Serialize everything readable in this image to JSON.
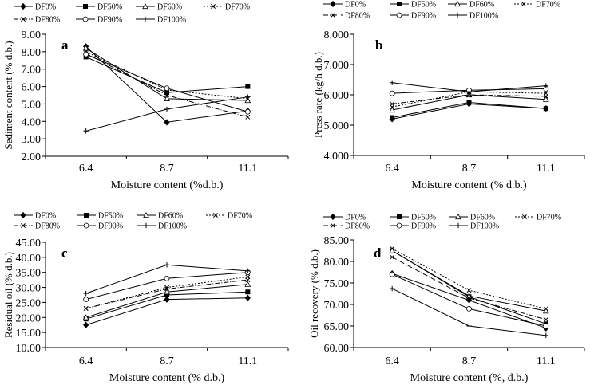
{
  "chart_data": [
    {
      "type": "line",
      "panel_letter": "a",
      "ylabel": "Sediment content (% d.b.)",
      "xlabel": "Moisture content (%d.b.)",
      "categories": [
        "6.4",
        "8.7",
        "11.1"
      ],
      "ylim": [
        2.0,
        9.0
      ],
      "yticks": [
        "2.00",
        "3.00",
        "4.00",
        "5.00",
        "6.00",
        "7.00",
        "8.00",
        "9.00"
      ],
      "legend_position": "top",
      "series": [
        {
          "name": "DF0%",
          "values": [
            8.3,
            3.95,
            4.6
          ]
        },
        {
          "name": "DF50%",
          "values": [
            7.7,
            5.65,
            6.0
          ]
        },
        {
          "name": "DF60%",
          "values": [
            8.2,
            5.3,
            5.2
          ]
        },
        {
          "name": "DF70%",
          "values": [
            8.0,
            5.8,
            5.3
          ]
        },
        {
          "name": "DF80%",
          "values": [
            7.9,
            5.5,
            4.25
          ]
        },
        {
          "name": "DF90%",
          "values": [
            7.85,
            5.9,
            4.55
          ]
        },
        {
          "name": "DF100%",
          "values": [
            3.45,
            4.7,
            5.4
          ]
        }
      ]
    },
    {
      "type": "line",
      "panel_letter": "b",
      "ylabel": "Press rate (kg/h d.b.)",
      "xlabel": "Moisture content (% d.b.)",
      "categories": [
        "6.4",
        "8.7",
        "11.1"
      ],
      "ylim": [
        4.0,
        8.0
      ],
      "yticks": [
        "4.000",
        "5.000",
        "6.000",
        "7.000",
        "8.000"
      ],
      "legend_position": "top",
      "series": [
        {
          "name": "DF0%",
          "values": [
            5.2,
            5.7,
            5.55
          ]
        },
        {
          "name": "DF50%",
          "values": [
            5.25,
            5.75,
            5.55
          ]
        },
        {
          "name": "DF60%",
          "values": [
            5.5,
            6.0,
            5.85
          ]
        },
        {
          "name": "DF70%",
          "values": [
            5.6,
            6.1,
            6.05
          ]
        },
        {
          "name": "DF80%",
          "values": [
            5.7,
            6.0,
            5.95
          ]
        },
        {
          "name": "DF90%",
          "values": [
            6.05,
            6.15,
            6.2
          ]
        },
        {
          "name": "DF100%",
          "values": [
            6.4,
            6.1,
            6.3
          ]
        }
      ]
    },
    {
      "type": "line",
      "panel_letter": "c",
      "ylabel": "Residual oil (% d.b.)",
      "xlabel": "Moisture content (% d.b.)",
      "categories": [
        "6.4",
        "8.7",
        "11.1"
      ],
      "ylim": [
        10.0,
        45.0
      ],
      "yticks": [
        "10.00",
        "15.00",
        "20.00",
        "25.00",
        "30.00",
        "35.00",
        "40.00",
        "45.00"
      ],
      "legend_position": "top",
      "series": [
        {
          "name": "DF0%",
          "values": [
            17.5,
            26.0,
            26.5
          ]
        },
        {
          "name": "DF50%",
          "values": [
            19.5,
            27.5,
            28.5
          ]
        },
        {
          "name": "DF60%",
          "values": [
            20.0,
            28.5,
            31.0
          ]
        },
        {
          "name": "DF70%",
          "values": [
            23.0,
            30.0,
            33.5
          ]
        },
        {
          "name": "DF80%",
          "values": [
            23.0,
            29.5,
            32.5
          ]
        },
        {
          "name": "DF90%",
          "values": [
            26.0,
            33.0,
            35.0
          ]
        },
        {
          "name": "DF100%",
          "values": [
            28.0,
            37.5,
            35.5
          ]
        }
      ]
    },
    {
      "type": "line",
      "panel_letter": "d",
      "ylabel": "Oil recovery (% d.b.)",
      "xlabel": "Moisture content (%, d.b.)",
      "categories": [
        "6.4",
        "8.7",
        "11.1"
      ],
      "ylim": [
        60.0,
        85.0
      ],
      "yticks": [
        "60.00",
        "65.00",
        "70.00",
        "75.00",
        "80.00",
        "85.00"
      ],
      "legend_position": "top",
      "series": [
        {
          "name": "DF0%",
          "values": [
            77.2,
            71.0,
            64.5
          ]
        },
        {
          "name": "DF50%",
          "values": [
            82.5,
            71.8,
            65.5
          ]
        },
        {
          "name": "DF60%",
          "values": [
            82.5,
            72.0,
            68.5
          ]
        },
        {
          "name": "DF70%",
          "values": [
            83.0,
            73.3,
            69.0
          ]
        },
        {
          "name": "DF80%",
          "values": [
            81.0,
            71.5,
            66.5
          ]
        },
        {
          "name": "DF90%",
          "values": [
            77.0,
            69.0,
            65.0
          ]
        },
        {
          "name": "DF100%",
          "values": [
            73.7,
            65.0,
            62.8
          ]
        }
      ]
    }
  ]
}
